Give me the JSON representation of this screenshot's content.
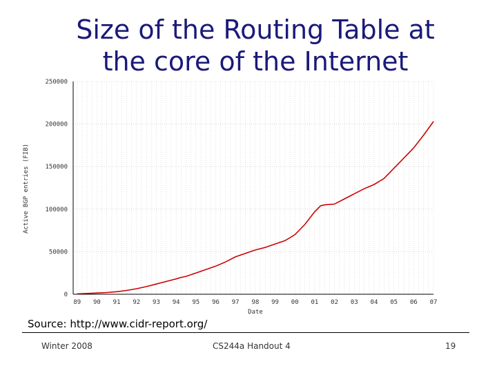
{
  "slide": {
    "title_line1": "Size of the Routing Table at",
    "title_line2": "the core of the Internet",
    "source": "Source: http://www.cidr-report.org/",
    "footer_left": "Winter 2008",
    "footer_center": "CS244a Handout 4",
    "footer_right": "19"
  },
  "colors": {
    "title": "#1a1a7a",
    "line": "#cc0000",
    "grid": "#c0c0c0"
  },
  "chart_data": {
    "type": "line",
    "title": "",
    "xlabel": "Date",
    "ylabel": "Active BGP entries (FIB)",
    "ylim": [
      0,
      250000
    ],
    "xlim": [
      1988.8,
      2007.0
    ],
    "yticks": [
      0,
      50000,
      100000,
      150000,
      200000,
      250000
    ],
    "ytick_labels": [
      "0",
      "50000",
      "100000",
      "150000",
      "200000",
      "250000"
    ],
    "xtick_labels": [
      "89",
      "90",
      "91",
      "92",
      "93",
      "94",
      "95",
      "96",
      "97",
      "98",
      "99",
      "00",
      "01",
      "02",
      "03",
      "04",
      "05",
      "06",
      "07"
    ],
    "xtick_years": [
      1989,
      1990,
      1991,
      1992,
      1993,
      1994,
      1995,
      1996,
      1997,
      1998,
      1999,
      2000,
      2001,
      2002,
      2003,
      2004,
      2005,
      2006,
      2007
    ],
    "grid": true,
    "series": [
      {
        "x": [
          1989.0,
          1989.5,
          1990.0,
          1990.5,
          1991.0,
          1991.5,
          1992.0,
          1992.5,
          1993.0,
          1993.5,
          1994.0,
          1994.2,
          1994.5,
          1995.0,
          1995.5,
          1996.0,
          1996.5,
          1997.0,
          1997.5,
          1998.0,
          1998.5,
          1999.0,
          1999.5,
          2000.0,
          2000.5,
          2001.0,
          2001.3,
          2001.5,
          2002.0,
          2002.5,
          2003.0,
          2003.5,
          2004.0,
          2004.5,
          2005.0,
          2005.5,
          2006.0,
          2006.5,
          2007.0
        ],
        "y": [
          500,
          1000,
          1500,
          2000,
          3000,
          4500,
          6500,
          9000,
          12000,
          15000,
          18000,
          19500,
          21000,
          25000,
          29000,
          33000,
          38000,
          44000,
          48000,
          52000,
          55000,
          59000,
          63000,
          70000,
          82000,
          97000,
          104000,
          105000,
          106000,
          112000,
          118000,
          124000,
          129000,
          136000,
          148000,
          160000,
          172000,
          187000,
          203000
        ]
      }
    ]
  }
}
